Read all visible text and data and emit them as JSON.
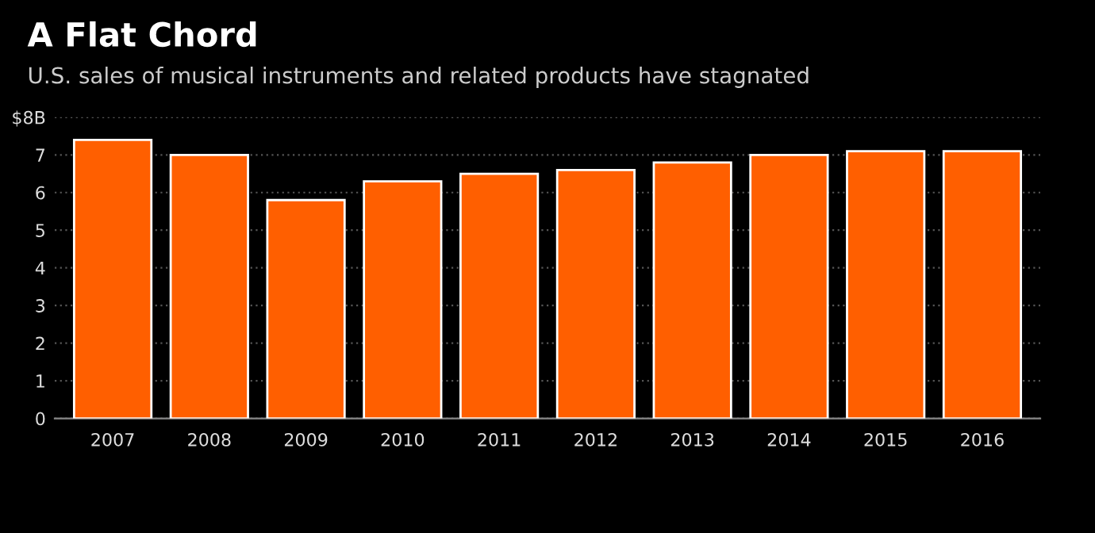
{
  "chart_data": {
    "type": "bar",
    "title": "A Flat Chord",
    "subtitle": "U.S. sales of musical instruments and related products have stagnated",
    "categories": [
      "2007",
      "2008",
      "2009",
      "2010",
      "2011",
      "2012",
      "2013",
      "2014",
      "2015",
      "2016"
    ],
    "values": [
      7.4,
      7.0,
      5.8,
      6.3,
      6.5,
      6.6,
      6.8,
      7.0,
      7.1,
      7.1
    ],
    "color": "#ff5f00",
    "ylim": [
      0,
      8
    ],
    "yticks": [
      0,
      1,
      2,
      3,
      4,
      5,
      6,
      7,
      {
        "value": 8,
        "label": "$8B"
      }
    ],
    "grid": "y"
  }
}
